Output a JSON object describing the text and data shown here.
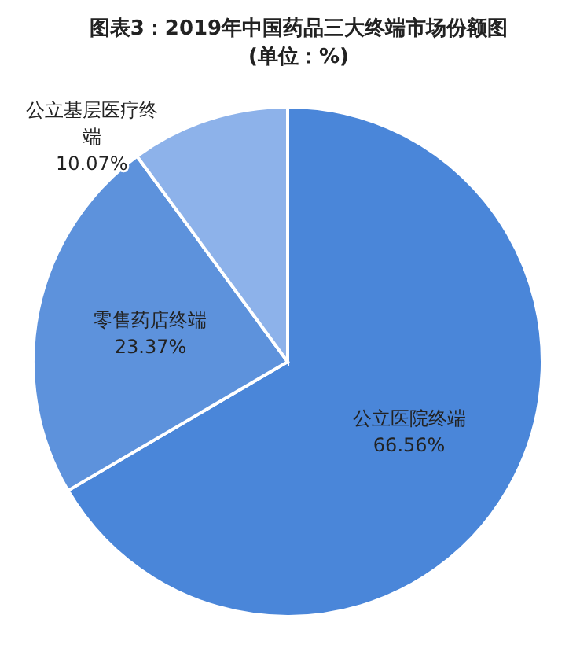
{
  "chart_data": {
    "type": "pie",
    "title": "图表3：2019年中国药品三大终端市场份额图",
    "subtitle": "(单位：%)",
    "categories": [
      "公立医院终端",
      "零售药店终端",
      "公立基层医疗终端"
    ],
    "values": [
      66.56,
      23.37,
      10.07
    ],
    "value_labels": [
      "66.56%",
      "23.37%",
      "10.07%"
    ],
    "colors": [
      "#4a86d9",
      "#5d92dc",
      "#8db2ea"
    ]
  }
}
